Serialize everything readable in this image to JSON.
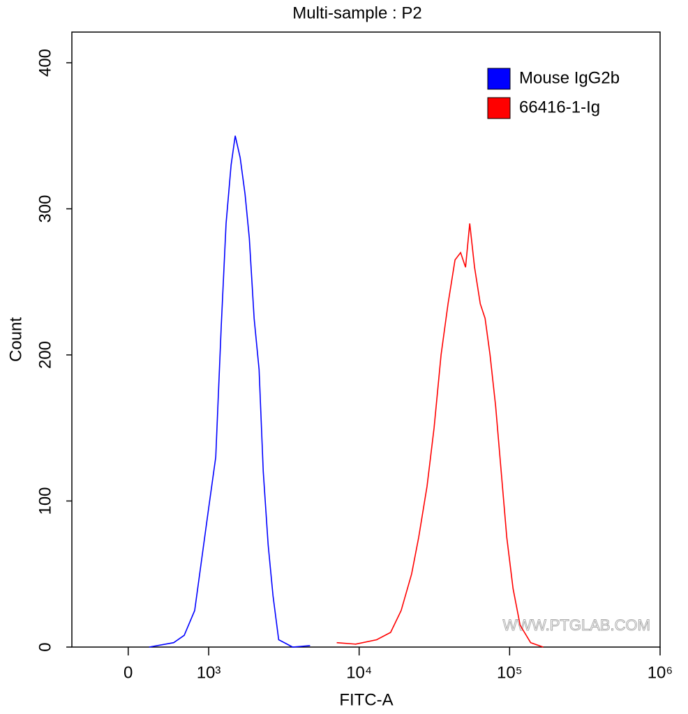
{
  "chart_data": {
    "type": "line",
    "title": "Multi-sample : P2",
    "x_label": "FITC-A",
    "y_label": "Count",
    "xscale": "biexponential",
    "xlim": [
      -700,
      1000000
    ],
    "xticks": [
      0,
      {
        "value": 1000,
        "label": "10³"
      },
      {
        "value": 10000,
        "label": "10⁴"
      },
      {
        "value": 100000,
        "label": "10⁵"
      },
      {
        "value": 1000000,
        "label": "10⁶"
      }
    ],
    "ylim": [
      0,
      421
    ],
    "yticks": [
      0,
      100,
      200,
      300,
      400
    ],
    "legend": "top-right",
    "watermark": "WWW.PTGLAB.COM",
    "series": [
      {
        "name": "Mouse IgG2b",
        "color": "#0000ff",
        "x": [
          261,
          565,
          696,
          826,
          913,
          1000,
          1114,
          1212,
          1306,
          1409,
          1502,
          1619,
          1746,
          1862,
          2005,
          2163,
          2306,
          2485,
          2679,
          2919,
          3615,
          4722
        ],
        "values": [
          0,
          3,
          8,
          25,
          60,
          95,
          130,
          220,
          290,
          330,
          350,
          335,
          310,
          280,
          225,
          190,
          120,
          70,
          35,
          5,
          0,
          1
        ]
      },
      {
        "name": "66416-1-Ig",
        "color": "#ff0000",
        "x": [
          7096,
          9480,
          13070,
          16180,
          19010,
          22330,
          24850,
          28260,
          31470,
          35010,
          38980,
          43370,
          47210,
          50930,
          54320,
          58480,
          63800,
          68710,
          74130,
          80720,
          87920,
          95780,
          105400,
          117400,
          138000,
          167200
        ],
        "values": [
          3,
          2,
          5,
          10,
          25,
          50,
          75,
          110,
          150,
          200,
          235,
          265,
          270,
          260,
          290,
          260,
          235,
          225,
          200,
          165,
          120,
          75,
          40,
          15,
          3,
          0
        ]
      }
    ]
  }
}
